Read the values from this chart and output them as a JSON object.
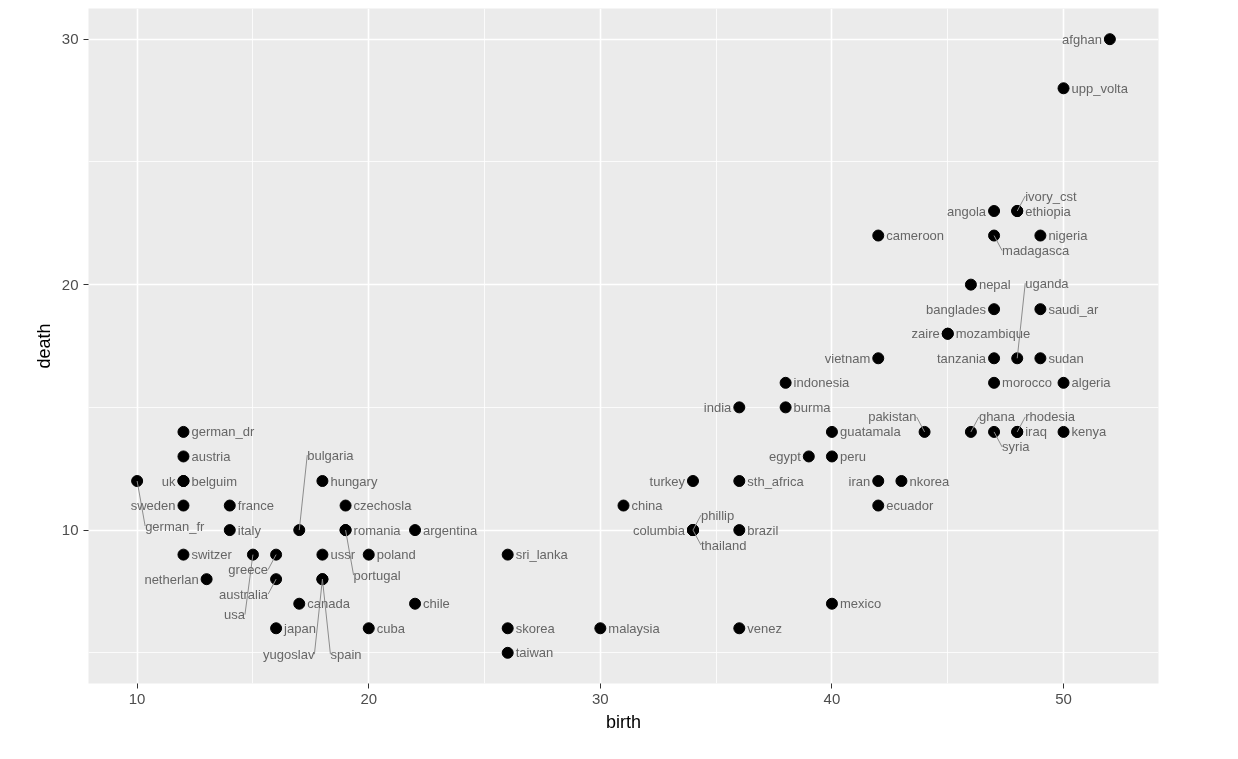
{
  "chart_data": {
    "type": "scatter",
    "xlabel": "birth",
    "ylabel": "death",
    "x": [
      52,
      50,
      47,
      22,
      16,
      12,
      47,
      12,
      36,
      17,
      38,
      42,
      17,
      22,
      31,
      26,
      34,
      20,
      19,
      42,
      39,
      48,
      14,
      12,
      10,
      46,
      16,
      40,
      18,
      36,
      38,
      42,
      48,
      14,
      48,
      16,
      50,
      43,
      26,
      47,
      30,
      40,
      47,
      45,
      46,
      13,
      49,
      44,
      40,
      34,
      20,
      19,
      48,
      19,
      49,
      36,
      18,
      26,
      49,
      12,
      12,
      47,
      47,
      34,
      34,
      18,
      48,
      12,
      15,
      50,
      36,
      42,
      18,
      45
    ],
    "values": [
      30,
      16,
      23,
      10,
      8,
      13,
      19,
      12,
      10,
      10,
      15,
      22,
      7,
      7,
      11,
      5,
      10,
      6,
      11,
      11,
      13,
      23,
      11,
      14,
      12,
      14,
      9,
      14,
      12,
      15,
      16,
      12,
      14,
      10,
      23,
      6,
      14,
      12,
      6,
      22,
      6,
      7,
      16,
      18,
      20,
      8,
      22,
      14,
      13,
      10,
      9,
      10,
      14,
      10,
      19,
      12,
      8,
      9,
      17,
      11,
      9,
      14,
      17,
      10,
      12,
      9,
      17,
      12,
      9,
      28,
      6,
      17,
      8,
      18
    ],
    "color": "#000000",
    "marker": "circle",
    "xlim": [
      7.9,
      54.1
    ],
    "ylim": [
      3.75,
      31.25
    ],
    "xticks": [
      10,
      20,
      30,
      40,
      50
    ],
    "yticks": [
      10,
      20,
      30
    ],
    "grid": true,
    "annotations": [
      {
        "text": "afghan",
        "x": 52,
        "y": 30
      },
      {
        "text": "algeria",
        "x": 50,
        "y": 16
      },
      {
        "text": "angola",
        "x": 47,
        "y": 23
      },
      {
        "text": "argentina",
        "x": 22,
        "y": 10
      },
      {
        "text": "australia",
        "x": 16,
        "y": 8
      },
      {
        "text": "austria",
        "x": 12,
        "y": 13
      },
      {
        "text": "banglades",
        "x": 47,
        "y": 19
      },
      {
        "text": "belguim",
        "x": 12,
        "y": 12
      },
      {
        "text": "brazil",
        "x": 36,
        "y": 10
      },
      {
        "text": "bulgaria",
        "x": 17,
        "y": 10
      },
      {
        "text": "burma",
        "x": 38,
        "y": 15
      },
      {
        "text": "cameroon",
        "x": 42,
        "y": 22
      },
      {
        "text": "canada",
        "x": 17,
        "y": 7
      },
      {
        "text": "chile",
        "x": 22,
        "y": 7
      },
      {
        "text": "china",
        "x": 31,
        "y": 11
      },
      {
        "text": "taiwan",
        "x": 26,
        "y": 5
      },
      {
        "text": "columbia",
        "x": 34,
        "y": 10
      },
      {
        "text": "cuba",
        "x": 20,
        "y": 6
      },
      {
        "text": "czechosla",
        "x": 19,
        "y": 11
      },
      {
        "text": "ecuador",
        "x": 42,
        "y": 11
      },
      {
        "text": "egypt",
        "x": 39,
        "y": 13
      },
      {
        "text": "ethiopia",
        "x": 48,
        "y": 23
      },
      {
        "text": "france",
        "x": 14,
        "y": 11
      },
      {
        "text": "german_dr",
        "x": 12,
        "y": 14
      },
      {
        "text": "german_fr",
        "x": 10,
        "y": 12
      },
      {
        "text": "ghana",
        "x": 46,
        "y": 14
      },
      {
        "text": "greece",
        "x": 16,
        "y": 9
      },
      {
        "text": "guatamala",
        "x": 40,
        "y": 14
      },
      {
        "text": "hungary",
        "x": 18,
        "y": 12
      },
      {
        "text": "india",
        "x": 36,
        "y": 15
      },
      {
        "text": "indonesia",
        "x": 38,
        "y": 16
      },
      {
        "text": "iran",
        "x": 42,
        "y": 12
      },
      {
        "text": "iraq",
        "x": 48,
        "y": 14
      },
      {
        "text": "italy",
        "x": 14,
        "y": 10
      },
      {
        "text": "ivory_cst",
        "x": 48,
        "y": 23
      },
      {
        "text": "japan",
        "x": 16,
        "y": 6
      },
      {
        "text": "kenya",
        "x": 50,
        "y": 14
      },
      {
        "text": "nkorea",
        "x": 43,
        "y": 12
      },
      {
        "text": "skorea",
        "x": 26,
        "y": 6
      },
      {
        "text": "madagasca",
        "x": 47,
        "y": 22
      },
      {
        "text": "malaysia",
        "x": 30,
        "y": 6
      },
      {
        "text": "mexico",
        "x": 40,
        "y": 7
      },
      {
        "text": "morocco",
        "x": 47,
        "y": 16
      },
      {
        "text": "mozambique",
        "x": 45,
        "y": 18
      },
      {
        "text": "nepal",
        "x": 46,
        "y": 20
      },
      {
        "text": "netherlan",
        "x": 13,
        "y": 8
      },
      {
        "text": "nigeria",
        "x": 49,
        "y": 22
      },
      {
        "text": "pakistan",
        "x": 44,
        "y": 14
      },
      {
        "text": "peru",
        "x": 40,
        "y": 13
      },
      {
        "text": "phillip",
        "x": 34,
        "y": 10
      },
      {
        "text": "poland",
        "x": 20,
        "y": 9
      },
      {
        "text": "portugal",
        "x": 19,
        "y": 10
      },
      {
        "text": "rhodesia",
        "x": 48,
        "y": 14
      },
      {
        "text": "romania",
        "x": 19,
        "y": 10
      },
      {
        "text": "saudi_ar",
        "x": 49,
        "y": 19
      },
      {
        "text": "sth_africa",
        "x": 36,
        "y": 12
      },
      {
        "text": "spain",
        "x": 18,
        "y": 8
      },
      {
        "text": "sri_lanka",
        "x": 26,
        "y": 9
      },
      {
        "text": "sudan",
        "x": 49,
        "y": 17
      },
      {
        "text": "sweden",
        "x": 12,
        "y": 11
      },
      {
        "text": "switzer",
        "x": 12,
        "y": 9
      },
      {
        "text": "syria",
        "x": 47,
        "y": 14
      },
      {
        "text": "tanzania",
        "x": 47,
        "y": 17
      },
      {
        "text": "thailand",
        "x": 34,
        "y": 10
      },
      {
        "text": "turkey",
        "x": 34,
        "y": 12
      },
      {
        "text": "ussr",
        "x": 18,
        "y": 9
      },
      {
        "text": "uganda",
        "x": 48,
        "y": 17
      },
      {
        "text": "uk",
        "x": 12,
        "y": 12
      },
      {
        "text": "usa",
        "x": 15,
        "y": 9
      },
      {
        "text": "upp_volta",
        "x": 50,
        "y": 28
      },
      {
        "text": "venez",
        "x": 36,
        "y": 6
      },
      {
        "text": "vietnam",
        "x": 42,
        "y": 17
      },
      {
        "text": "yugoslav",
        "x": 18,
        "y": 8
      },
      {
        "text": "zaire",
        "x": 45,
        "y": 18
      }
    ]
  }
}
